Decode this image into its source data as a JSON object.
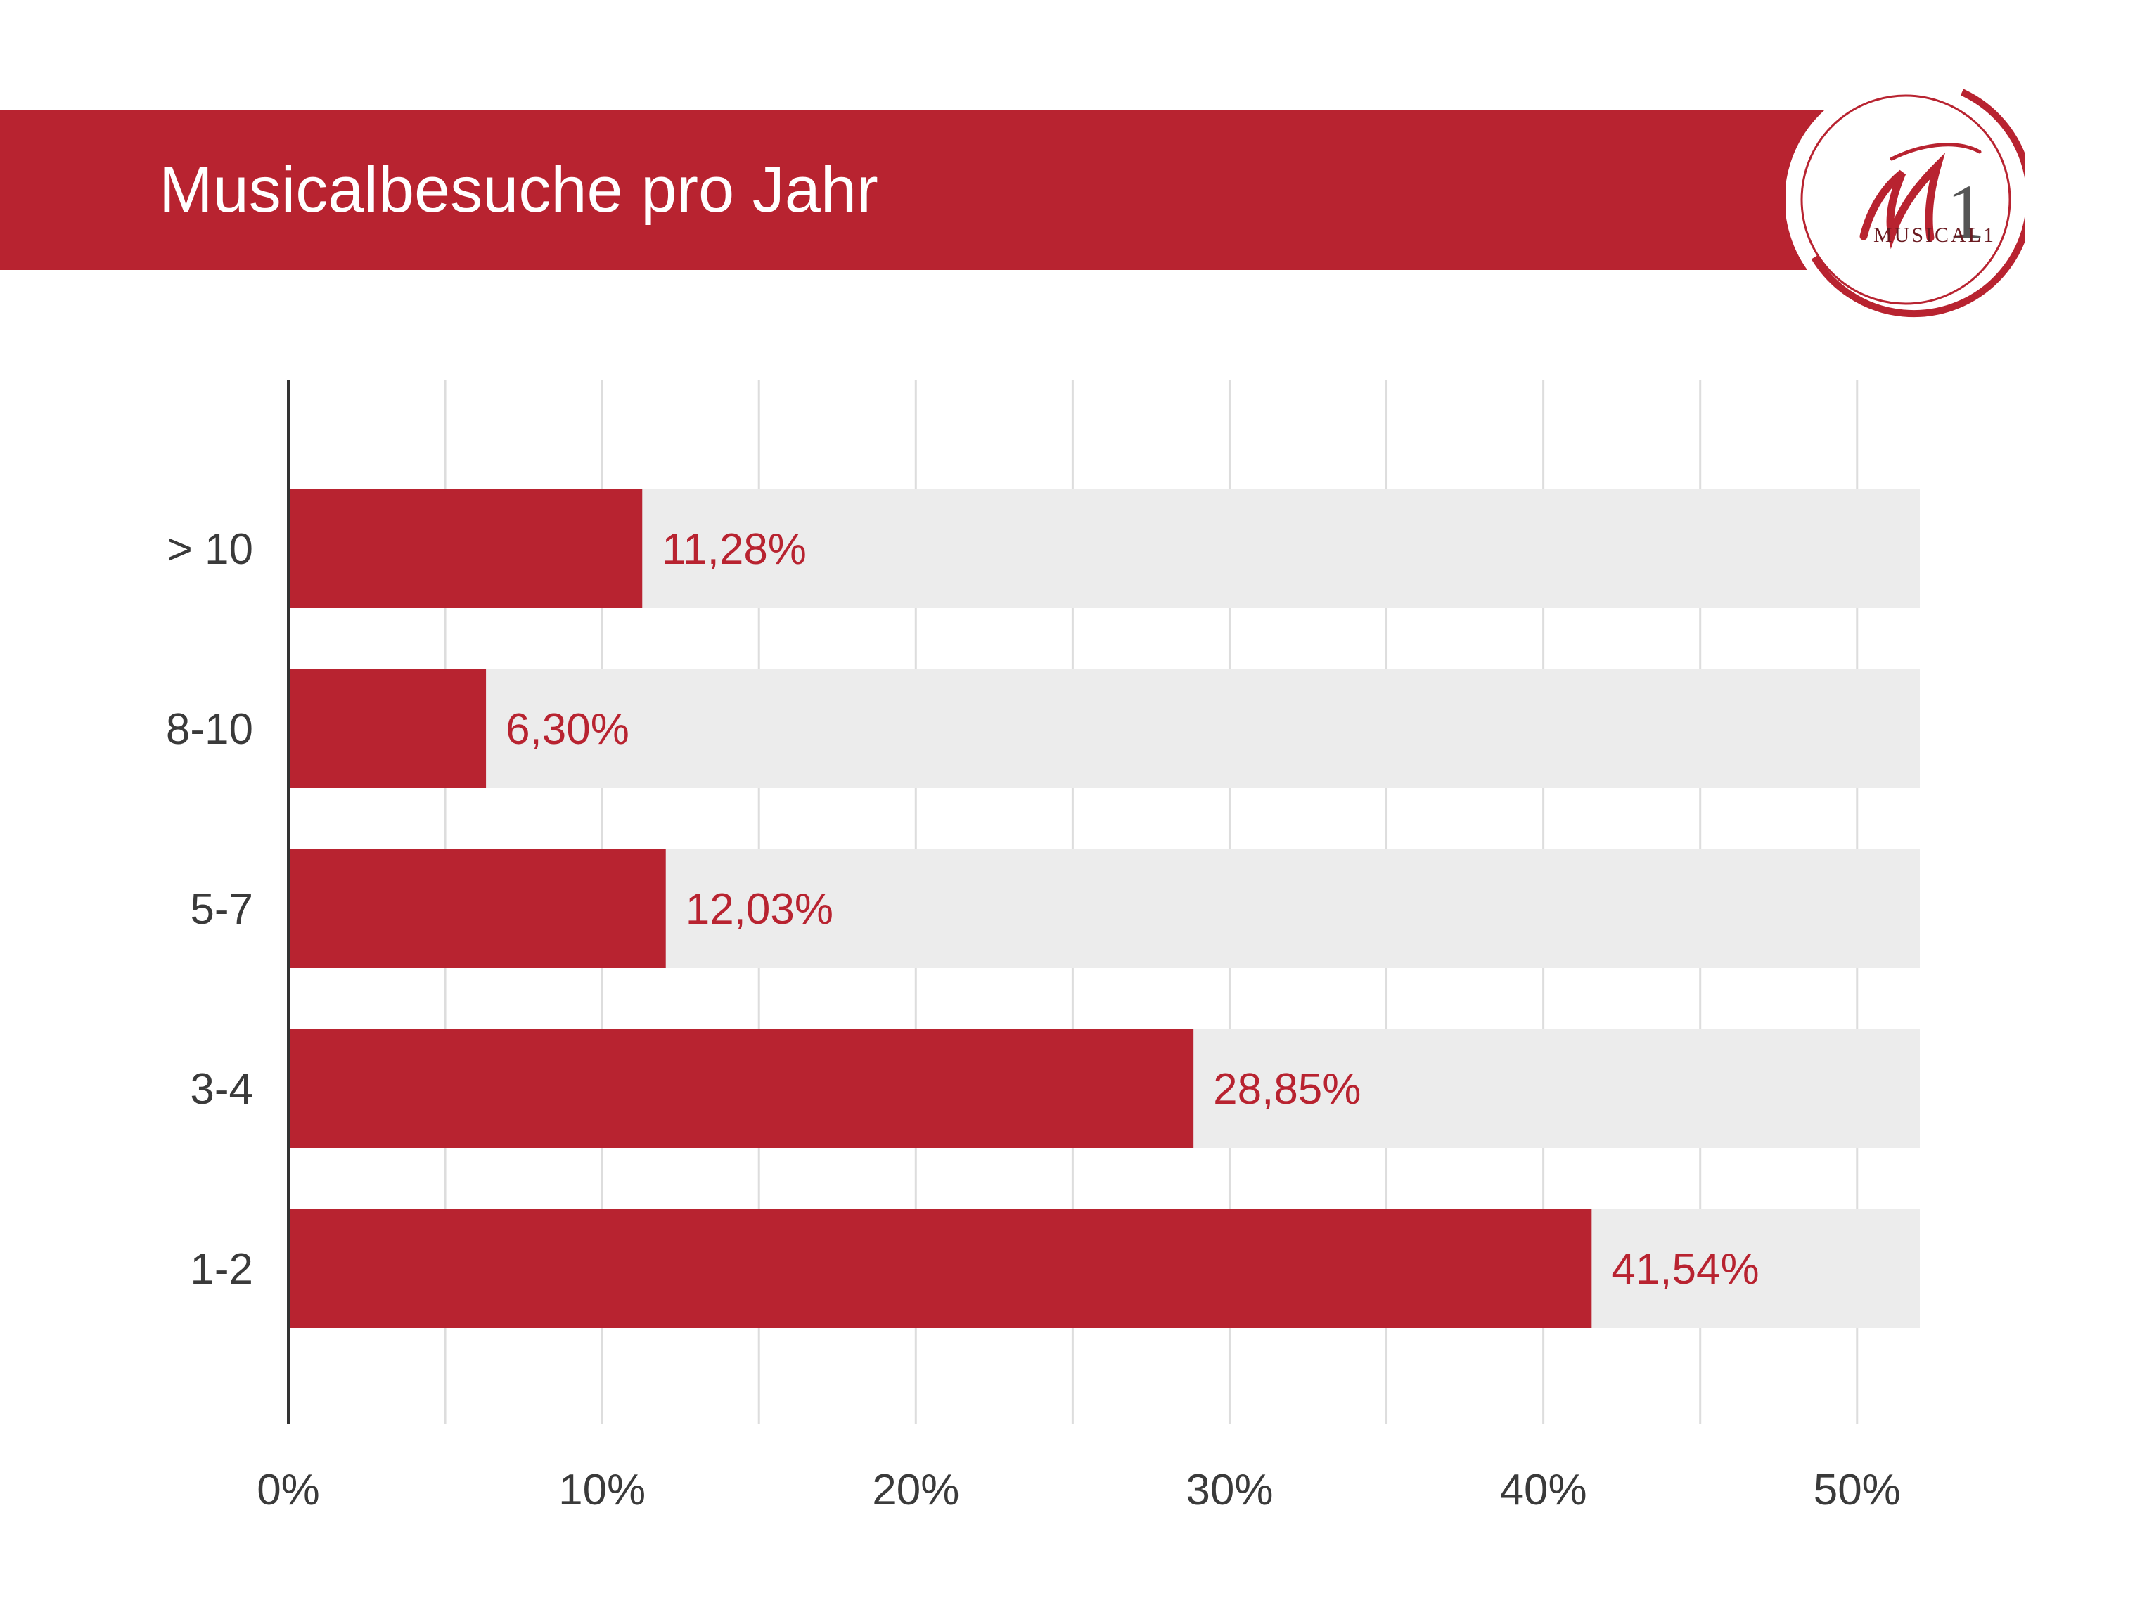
{
  "header": {
    "title": "Musicalbesuche pro Jahr",
    "banner_color": "#b82330"
  },
  "logo": {
    "wordmark": "MUSICAL1",
    "monogram": "M1",
    "color": "#b82330",
    "ring_color": "#b82330",
    "icon": "musical1-logo"
  },
  "chart_data": {
    "type": "bar",
    "orientation": "horizontal",
    "title": "Musicalbesuche pro Jahr",
    "categories": [
      "> 10",
      "8-10",
      "5-7",
      "3-4",
      "1-2"
    ],
    "values": [
      11.28,
      6.3,
      12.03,
      28.85,
      41.54
    ],
    "value_labels": [
      "11,28%",
      "6,30%",
      "12,03%",
      "28,85%",
      "41,54%"
    ],
    "xlim": [
      0,
      52
    ],
    "xticks": [
      0,
      10,
      20,
      30,
      40,
      50
    ],
    "xtick_labels": [
      "0%",
      "10%",
      "20%",
      "30%",
      "40%",
      "50%"
    ],
    "xlabel": "",
    "ylabel": "",
    "grid": true,
    "bar_color": "#b82330",
    "track_color": "#ececec",
    "label_color": "#b82330",
    "grid_color": "#dddddd"
  }
}
